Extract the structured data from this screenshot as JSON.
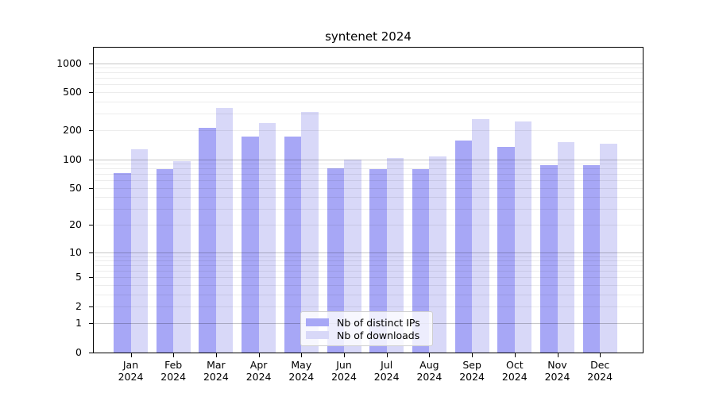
{
  "chart_data": {
    "type": "bar",
    "title": "syntenet 2024",
    "categories": [
      "Jan",
      "Feb",
      "Mar",
      "Apr",
      "May",
      "Jun",
      "Jul",
      "Aug",
      "Sep",
      "Oct",
      "Nov",
      "Dec"
    ],
    "category_year": "2024",
    "series": [
      {
        "name": "Nb of distinct IPs",
        "color": "#a7a7f6",
        "values": [
          72,
          79,
          211,
          173,
          174,
          80,
          79,
          79,
          157,
          136,
          87,
          86
        ]
      },
      {
        "name": "Nb of downloads",
        "color": "#d8d8f8",
        "values": [
          126,
          96,
          340,
          238,
          310,
          100,
          103,
          108,
          263,
          247,
          150,
          145
        ]
      }
    ],
    "yscale": "log1p",
    "ylabel": "",
    "xlabel": "",
    "y_ticks": [
      1000,
      500,
      200,
      100,
      50,
      20,
      10,
      5,
      2,
      1,
      0
    ],
    "ylim": [
      0,
      1450
    ],
    "grid": "major decades dark, minor log lines faint, drawn above bars",
    "legend_position": "lower center",
    "colors": {
      "grid_major": "#c7c7c7",
      "grid_minor": "#ededed",
      "axis": "#000000",
      "background": "#ffffff"
    }
  }
}
